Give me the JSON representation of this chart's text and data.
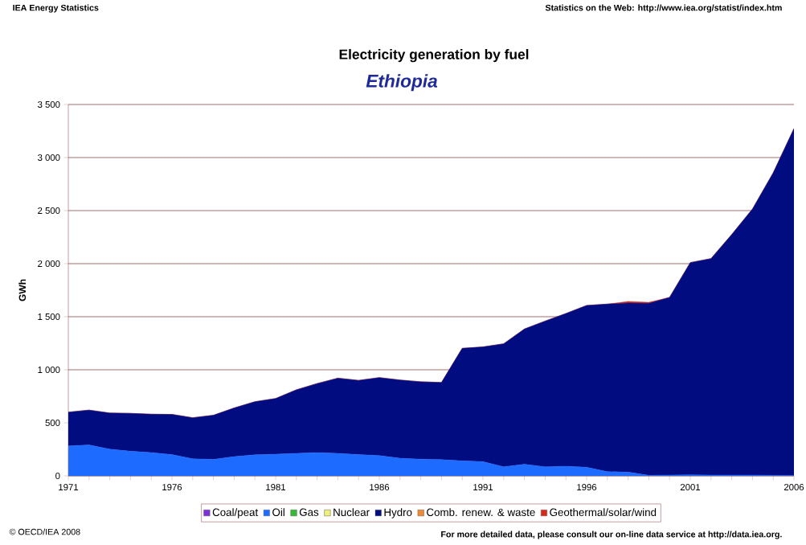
{
  "chart_data": {
    "type": "area",
    "stacked": true,
    "title": "Electricity generation by fuel",
    "subtitle": "Ethiopia",
    "ylabel": "GWh",
    "annotations": [
      "IEA Energy Statistics",
      "Statistics on the Web: http://www.iea.org/statist/index.htm",
      "© OECD/IEA 2008",
      "For more detailed data, please consult our on-line data service at http://data.iea.org."
    ],
    "x": [
      1971,
      1972,
      1973,
      1974,
      1975,
      1976,
      1977,
      1978,
      1979,
      1980,
      1981,
      1982,
      1983,
      1984,
      1985,
      1986,
      1987,
      1988,
      1989,
      1990,
      1991,
      1992,
      1993,
      1994,
      1995,
      1996,
      1997,
      1998,
      1999,
      2000,
      2001,
      2002,
      2003,
      2004,
      2005,
      2006
    ],
    "series": [
      {
        "name": "Coal/peat",
        "color": "#7f2fd8",
        "values": [
          null,
          null,
          null,
          null,
          null,
          null,
          null,
          null,
          null,
          null,
          null,
          null,
          null,
          null,
          null,
          null,
          null,
          null,
          null,
          null,
          null,
          null,
          null,
          null,
          null,
          null,
          null,
          null,
          null,
          null,
          null,
          null,
          null,
          null,
          null,
          null
        ]
      },
      {
        "name": "Oil",
        "color": "#1e6cff",
        "values": [
          283,
          291,
          252,
          232,
          219,
          201,
          161,
          156,
          181,
          199,
          204,
          212,
          219,
          212,
          201,
          191,
          166,
          158,
          153,
          141,
          134,
          86,
          109,
          86,
          91,
          81,
          40,
          35,
          5,
          8,
          10,
          8,
          8,
          8,
          5,
          3
        ]
      },
      {
        "name": "Gas",
        "color": "#33bb33",
        "values": [
          null,
          null,
          null,
          null,
          null,
          null,
          null,
          null,
          null,
          null,
          null,
          null,
          null,
          null,
          null,
          null,
          null,
          null,
          null,
          null,
          null,
          null,
          null,
          null,
          null,
          null,
          null,
          null,
          null,
          null,
          null,
          null,
          null,
          null,
          null,
          null
        ]
      },
      {
        "name": "Nuclear",
        "color": "#eef07a",
        "values": [
          null,
          null,
          null,
          null,
          null,
          null,
          null,
          null,
          null,
          null,
          null,
          null,
          null,
          null,
          null,
          null,
          null,
          null,
          null,
          null,
          null,
          null,
          null,
          null,
          null,
          null,
          null,
          null,
          null,
          null,
          null,
          null,
          null,
          null,
          null,
          null
        ]
      },
      {
        "name": "Hydro",
        "color": "#000c80",
        "values": [
          317,
          329,
          340,
          357,
          362,
          378,
          387,
          415,
          459,
          500,
          525,
          599,
          651,
          709,
          699,
          735,
          737,
          729,
          727,
          1061,
          1081,
          1159,
          1275,
          1373,
          1439,
          1525,
          1579,
          1594,
          1621,
          1674,
          2000,
          2040,
          2267,
          2507,
          2851,
          3269
        ]
      },
      {
        "name": "Comb. renew. & waste",
        "color": "#f08a30",
        "values": [
          null,
          null,
          null,
          null,
          null,
          null,
          null,
          null,
          null,
          null,
          null,
          null,
          null,
          null,
          null,
          null,
          null,
          null,
          null,
          null,
          null,
          null,
          null,
          null,
          null,
          null,
          null,
          null,
          null,
          null,
          null,
          null,
          null,
          null,
          null,
          null
        ]
      },
      {
        "name": "Geothermal/solar/wind",
        "color": "#d42a1a",
        "values": [
          0,
          0,
          0,
          0,
          0,
          0,
          0,
          0,
          0,
          0,
          0,
          0,
          0,
          0,
          0,
          0,
          0,
          0,
          0,
          0,
          0,
          0,
          0,
          0,
          0,
          0,
          0,
          15,
          10,
          0,
          0,
          0,
          0,
          0,
          0,
          0
        ]
      }
    ],
    "xlim": [
      1971,
      2006
    ],
    "xticks": [
      1971,
      {
        "value": 1972,
        "label": null
      },
      {
        "value": 1973,
        "label": null
      },
      {
        "value": 1974,
        "label": null
      },
      {
        "value": 1975,
        "label": null
      },
      1976,
      {
        "value": 1977,
        "label": null
      },
      {
        "value": 1978,
        "label": null
      },
      {
        "value": 1979,
        "label": null
      },
      {
        "value": 1980,
        "label": null
      },
      1981,
      {
        "value": 1982,
        "label": null
      },
      {
        "value": 1983,
        "label": null
      },
      {
        "value": 1984,
        "label": null
      },
      {
        "value": 1985,
        "label": null
      },
      1986,
      {
        "value": 1987,
        "label": null
      },
      {
        "value": 1988,
        "label": null
      },
      {
        "value": 1989,
        "label": null
      },
      {
        "value": 1990,
        "label": null
      },
      1991,
      {
        "value": 1992,
        "label": null
      },
      {
        "value": 1993,
        "label": null
      },
      {
        "value": 1994,
        "label": null
      },
      {
        "value": 1995,
        "label": null
      },
      1996,
      {
        "value": 1997,
        "label": null
      },
      {
        "value": 1998,
        "label": null
      },
      {
        "value": 1999,
        "label": null
      },
      {
        "value": 2000,
        "label": null
      },
      2001,
      {
        "value": 2002,
        "label": null
      },
      {
        "value": 2003,
        "label": null
      },
      {
        "value": 2004,
        "label": null
      },
      {
        "value": 2005,
        "label": null
      },
      2006
    ],
    "ylim": [
      0,
      3500
    ],
    "yticks": [
      0,
      500,
      {
        "value": 1000,
        "label": "1 000"
      },
      {
        "value": 1500,
        "label": "1 500"
      },
      {
        "value": 2000,
        "label": "2 000"
      },
      {
        "value": 2500,
        "label": "2 500"
      },
      {
        "value": 3000,
        "label": "3 000"
      },
      {
        "value": 3500,
        "label": "3 500"
      }
    ],
    "grid": "y",
    "legend": "bottom"
  }
}
